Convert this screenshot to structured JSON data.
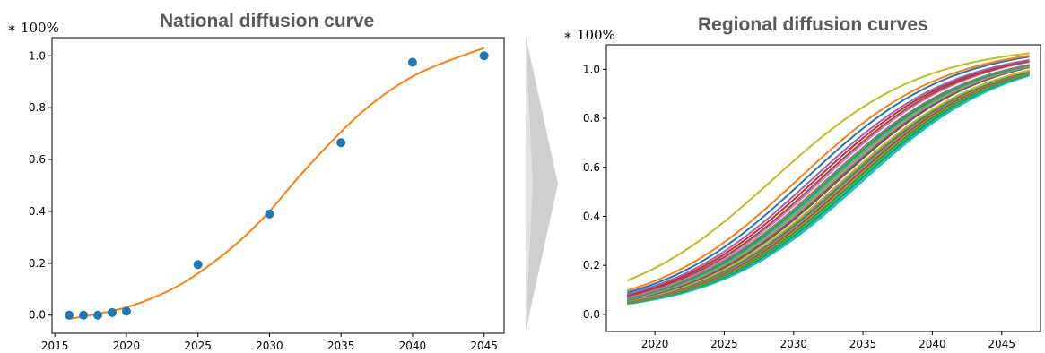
{
  "chart_data": [
    {
      "type": "scatter",
      "title": "National diffusion curve",
      "unit_label": "∗ 100%",
      "xlabel": "",
      "ylabel": "",
      "xlim": [
        2014.8,
        2046.4
      ],
      "ylim": [
        -0.07,
        1.07
      ],
      "xticks": [
        2015,
        2020,
        2025,
        2030,
        2035,
        2040,
        2045
      ],
      "yticks": [
        0.0,
        0.2,
        0.4,
        0.6,
        0.8,
        1.0
      ],
      "ytick_labels": [
        "0.0",
        "0.2",
        "0.4",
        "0.6",
        "0.8",
        "1.0"
      ],
      "grid": false,
      "points": {
        "x": [
          2016,
          2017,
          2018,
          2019,
          2020,
          2025,
          2030,
          2035,
          2040,
          2045
        ],
        "y": [
          0.0,
          0.0,
          0.0,
          0.01,
          0.015,
          0.195,
          0.39,
          0.665,
          0.975,
          1.0
        ],
        "color": "#1f77b4"
      },
      "fit_curve": {
        "color": "#ff7f0e",
        "x": [
          2016,
          2018,
          2020,
          2022,
          2024,
          2026,
          2028,
          2030,
          2032,
          2034,
          2036,
          2038,
          2040,
          2042,
          2045
        ],
        "y": [
          -0.015,
          0.005,
          0.03,
          0.07,
          0.125,
          0.2,
          0.29,
          0.4,
          0.53,
          0.65,
          0.76,
          0.85,
          0.92,
          0.97,
          1.03
        ]
      }
    },
    {
      "type": "line",
      "title": "Regional diffusion curves",
      "unit_label": "∗ 100%",
      "xlabel": "",
      "ylabel": "",
      "xlim": [
        2016.5,
        2047.8
      ],
      "ylim": [
        -0.07,
        1.1
      ],
      "xticks": [
        2020,
        2025,
        2030,
        2035,
        2040,
        2045
      ],
      "yticks": [
        0.0,
        0.2,
        0.4,
        0.6,
        0.8,
        1.0
      ],
      "ytick_labels": [
        "0.0",
        "0.2",
        "0.4",
        "0.6",
        "0.8",
        "1.0"
      ],
      "grid": false,
      "x_start": 2018,
      "x_end": 2047,
      "series": [
        {
          "color": "#bcbd22",
          "x0": 2028.5,
          "k": 0.185,
          "L": 1.1
        },
        {
          "color": "#ff7f0e",
          "x0": 2030.3,
          "k": 0.19,
          "L": 1.1
        },
        {
          "color": "#1f77b4",
          "x0": 2030.8,
          "k": 0.19,
          "L": 1.1
        },
        {
          "color": "#9467bd",
          "x0": 2031.2,
          "k": 0.19,
          "L": 1.09
        },
        {
          "color": "#d62728",
          "x0": 2031.5,
          "k": 0.19,
          "L": 1.09
        },
        {
          "color": "#8c564b",
          "x0": 2031.8,
          "k": 0.19,
          "L": 1.09
        },
        {
          "color": "#e377c2",
          "x0": 2032.0,
          "k": 0.19,
          "L": 1.09
        },
        {
          "color": "#7f7f7f",
          "x0": 2032.2,
          "k": 0.19,
          "L": 1.08
        },
        {
          "color": "#2ca02c",
          "x0": 2032.4,
          "k": 0.19,
          "L": 1.08
        },
        {
          "color": "#17becf",
          "x0": 2032.6,
          "k": 0.19,
          "L": 1.08
        },
        {
          "color": "#ff7f0e",
          "x0": 2032.8,
          "k": 0.19,
          "L": 1.08
        },
        {
          "color": "#1f77b4",
          "x0": 2033.0,
          "k": 0.19,
          "L": 1.08
        },
        {
          "color": "#d62728",
          "x0": 2033.1,
          "k": 0.19,
          "L": 1.08
        },
        {
          "color": "#bcbd22",
          "x0": 2033.3,
          "k": 0.19,
          "L": 1.07
        },
        {
          "color": "#9467bd",
          "x0": 2033.4,
          "k": 0.19,
          "L": 1.07
        },
        {
          "color": "#2ca02c",
          "x0": 2033.6,
          "k": 0.19,
          "L": 1.07
        },
        {
          "color": "#e377c2",
          "x0": 2033.7,
          "k": 0.19,
          "L": 1.07
        },
        {
          "color": "#8c564b",
          "x0": 2033.9,
          "k": 0.19,
          "L": 1.07
        },
        {
          "color": "#ff7f0e",
          "x0": 2034.0,
          "k": 0.19,
          "L": 1.07
        },
        {
          "color": "#2ca02c",
          "x0": 2034.2,
          "k": 0.19,
          "L": 1.07
        },
        {
          "color": "#17becf",
          "x0": 2034.3,
          "k": 0.19,
          "L": 1.07
        },
        {
          "color": "#2ca02c",
          "x0": 2034.5,
          "k": 0.19,
          "L": 1.07
        },
        {
          "color": "#17becf",
          "x0": 2034.6,
          "k": 0.19,
          "L": 1.07
        },
        {
          "color": "#17becf",
          "x0": 2034.8,
          "k": 0.19,
          "L": 1.07
        }
      ]
    }
  ]
}
